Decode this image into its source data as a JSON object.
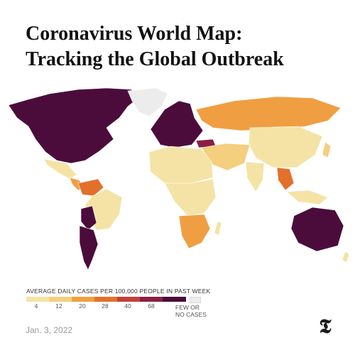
{
  "header": {
    "title_line1": "Coronavirus World Map:",
    "title_line2": "Tracking the Global Outbreak"
  },
  "legend": {
    "title": "AVERAGE DAILY CASES PER 100,000 PEOPLE IN PAST WEEK",
    "ticks": [
      "4",
      "12",
      "20",
      "28",
      "40",
      "68"
    ],
    "colors": [
      "#f5e3a6",
      "#f3cf7e",
      "#ef9f42",
      "#e2702b",
      "#c54035",
      "#8a1f45",
      "#4b0c3c"
    ],
    "no_cases_label_line1": "FEW OR",
    "no_cases_label_line2": "NO CASES",
    "no_cases_color": "#ececec"
  },
  "footer": {
    "date": "Jan. 3, 2022",
    "logo_icon": "nyt-logo-icon"
  }
}
